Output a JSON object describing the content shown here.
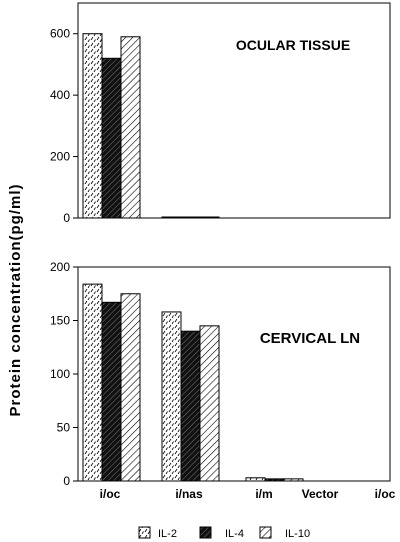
{
  "ylabel": "Protein concentration(pg/ml)",
  "chart_data": [
    {
      "type": "bar",
      "title": "OCULAR TISSUE",
      "categories": [
        "i/oc",
        "i/nas",
        "i/m",
        "Vector",
        "i/oc"
      ],
      "ylim": [
        0,
        700
      ],
      "yticks": [
        0,
        200,
        400,
        600
      ],
      "series": [
        {
          "name": "IL-2",
          "values": [
            600,
            2,
            0,
            0,
            0
          ]
        },
        {
          "name": "IL-4",
          "values": [
            520,
            1,
            0,
            0,
            0
          ]
        },
        {
          "name": "IL-10",
          "values": [
            590,
            1,
            0,
            0,
            0
          ]
        }
      ]
    },
    {
      "type": "bar",
      "title": "CERVICAL LN",
      "categories": [
        "i/oc",
        "i/nas",
        "i/m",
        "Vector",
        "i/oc"
      ],
      "ylim": [
        0,
        200
      ],
      "yticks": [
        0,
        50,
        100,
        150,
        200
      ],
      "series": [
        {
          "name": "IL-2",
          "values": [
            184,
            158,
            3,
            0,
            0
          ]
        },
        {
          "name": "IL-4",
          "values": [
            167,
            140,
            2,
            0,
            0
          ]
        },
        {
          "name": "IL-10",
          "values": [
            175,
            145,
            2,
            0,
            0
          ]
        }
      ]
    }
  ],
  "legend": [
    {
      "label": "IL-2",
      "pattern": "dots"
    },
    {
      "label": "IL-4",
      "pattern": "dark-hatch"
    },
    {
      "label": "IL-10",
      "pattern": "light-hatch"
    }
  ]
}
